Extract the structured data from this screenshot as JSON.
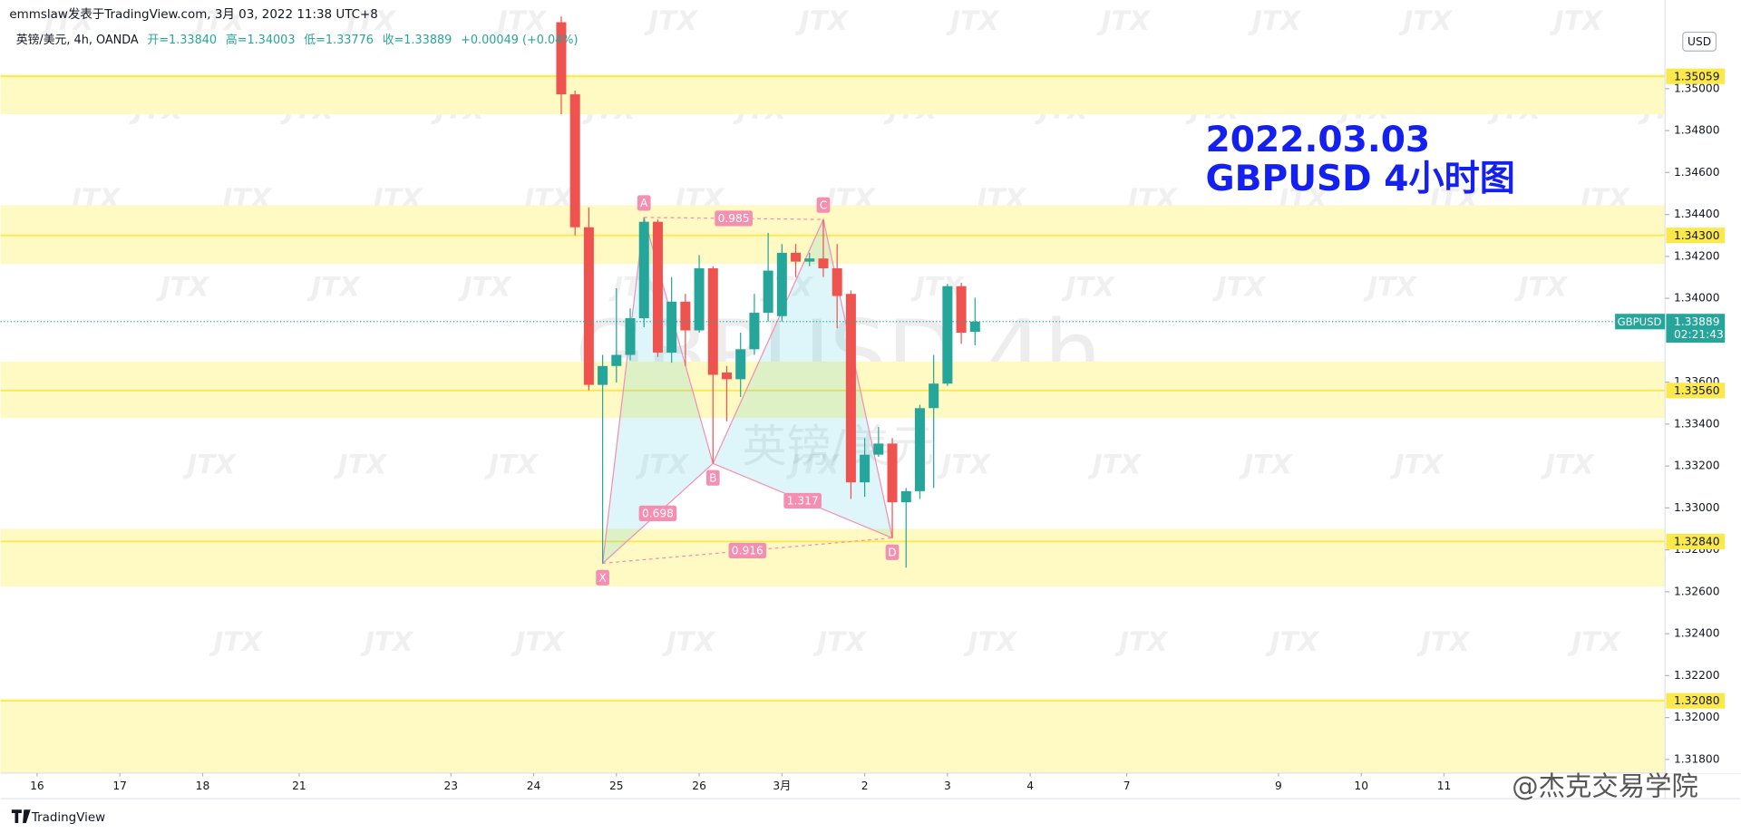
{
  "header": {
    "byline": "emmslaw发表于TradingView.com, 3月 03, 2022 11:38 UTC+8",
    "symbol": "英镑/美元, 4h, OANDA",
    "open": "开=1.33840",
    "high": "高=1.34003",
    "low": "低=1.33776",
    "close": "收=1.33889",
    "change": "+0.00049 (+0.04%)"
  },
  "overlay": {
    "date": "2022.03.03",
    "caption": "GBPUSD 4小时图",
    "watermark": "GBPUSD 4h",
    "watermark_cn": "英镑/美元",
    "tiles": "JTX",
    "credit": "@杰克交易学院",
    "brand": "TradingView"
  },
  "chart_data": {
    "type": "candlestick",
    "currency": "USD",
    "x": [
      38,
      39,
      40,
      41,
      42,
      43,
      44,
      45,
      46,
      47,
      48,
      49,
      50,
      51,
      52,
      53,
      54,
      55,
      56,
      57,
      58,
      59,
      60,
      61,
      62,
      63,
      64,
      65,
      66,
      67,
      68
    ],
    "open": [
      1.35317,
      1.34973,
      1.34339,
      1.33587,
      1.33677,
      1.3373,
      1.33905,
      1.34365,
      1.33741,
      1.33984,
      1.33847,
      1.34143,
      1.33646,
      1.33614,
      1.33757,
      1.33931,
      1.33915,
      1.34217,
      1.34175,
      1.3419,
      1.34143,
      1.34021,
      1.33122,
      1.33254,
      1.33307,
      1.33027,
      1.3308,
      1.33476,
      1.33593,
      1.34058,
      1.3384
    ],
    "high": [
      1.35344,
      1.3499,
      1.34434,
      1.3373,
      1.34048,
      1.33952,
      1.34386,
      1.34376,
      1.34101,
      1.34021,
      1.34206,
      1.34153,
      1.33677,
      1.33836,
      1.34021,
      1.34312,
      1.34259,
      1.34259,
      1.34217,
      1.34376,
      1.34259,
      1.34037,
      1.33333,
      1.33386,
      1.33333,
      1.33095,
      1.33492,
      1.3373,
      1.34069,
      1.34074,
      1.34003
    ],
    "low": [
      1.34878,
      1.343,
      1.33561,
      1.32736,
      1.33598,
      1.33704,
      1.33862,
      1.3372,
      1.33693,
      1.33677,
      1.33836,
      1.33212,
      1.33413,
      1.33529,
      1.3373,
      1.33889,
      1.33889,
      1.34101,
      1.34153,
      1.34101,
      1.33857,
      1.33043,
      1.33053,
      1.33244,
      1.32857,
      1.32715,
      1.33043,
      1.33095,
      1.33582,
      1.33783,
      1.33776
    ],
    "close": [
      1.34973,
      1.34339,
      1.33587,
      1.33677,
      1.3373,
      1.33905,
      1.34365,
      1.33741,
      1.33984,
      1.33847,
      1.34143,
      1.33635,
      1.33614,
      1.33757,
      1.33931,
      1.34132,
      1.34217,
      1.34175,
      1.3419,
      1.34143,
      1.34011,
      1.33122,
      1.33254,
      1.33307,
      1.33027,
      1.3308,
      1.33476,
      1.33593,
      1.34058,
      1.33836,
      1.33889
    ],
    "up_color": "#26a69a",
    "down_color": "#ef5350",
    "xlim": [
      -2.65,
      118.02
    ],
    "xticks": [
      {
        "value": 0,
        "label": "16"
      },
      {
        "value": 6,
        "label": "17"
      },
      {
        "value": 12,
        "label": "18"
      },
      {
        "value": 19,
        "label": "21"
      },
      {
        "value": 30,
        "label": "23"
      },
      {
        "value": 36,
        "label": "24"
      },
      {
        "value": 42,
        "label": "25"
      },
      {
        "value": 48,
        "label": "26"
      },
      {
        "value": 54,
        "label": "3月"
      },
      {
        "value": 60,
        "label": "2"
      },
      {
        "value": 66,
        "label": "3"
      },
      {
        "value": 72,
        "label": "4"
      },
      {
        "value": 79,
        "label": "7"
      },
      {
        "value": 90,
        "label": "9"
      },
      {
        "value": 96,
        "label": "10"
      },
      {
        "value": 102,
        "label": "11"
      }
    ],
    "ylim": [
      1.31735,
      1.35423
    ],
    "yticks": [
      {
        "value": 1.318,
        "label": "1.31800"
      },
      {
        "value": 1.32,
        "label": "1.32000"
      },
      {
        "value": 1.322,
        "label": "1.32200"
      },
      {
        "value": 1.324,
        "label": "1.32400"
      },
      {
        "value": 1.326,
        "label": "1.32600"
      },
      {
        "value": 1.328,
        "label": "1.32800"
      },
      {
        "value": 1.33,
        "label": "1.33000"
      },
      {
        "value": 1.332,
        "label": "1.33200"
      },
      {
        "value": 1.334,
        "label": "1.33400"
      },
      {
        "value": 1.336,
        "label": "1.33600"
      },
      {
        "value": 1.34,
        "label": "1.34000"
      },
      {
        "value": 1.342,
        "label": "1.34200"
      },
      {
        "value": 1.344,
        "label": "1.34400"
      },
      {
        "value": 1.346,
        "label": "1.34600"
      },
      {
        "value": 1.348,
        "label": "1.34800"
      },
      {
        "value": 1.35,
        "label": "1.35000"
      }
    ],
    "grid": false,
    "zones": [
      {
        "level": {
          "value": 1.35059,
          "label": "1.35059"
        },
        "top": 1.35069,
        "bottom": 1.34878
      },
      {
        "level": {
          "value": 1.343,
          "label": "1.34300"
        },
        "top": 1.34444,
        "bottom": 1.34164
      },
      {
        "level": {
          "value": 1.3356,
          "label": "1.33560"
        },
        "top": 1.33698,
        "bottom": 1.33429
      },
      {
        "level": {
          "value": 1.3284,
          "label": "1.32840"
        },
        "top": 1.329,
        "bottom": 1.32625
      },
      {
        "level": {
          "value": 1.3208,
          "label": "1.32080"
        },
        "top": 1.3209,
        "bottom": 1.31735
      }
    ],
    "zone_color": "#fff9c4",
    "zone_line": "#fbe84a",
    "current_price": 1.33889,
    "symbol_tag": "GBPUSD",
    "countdown": "02:21:43",
    "pattern": {
      "points": [
        {
          "label": "X",
          "x": 41,
          "price": 1.32736
        },
        {
          "label": "A",
          "x": 44,
          "price": 1.34386
        },
        {
          "label": "B",
          "x": 49,
          "price": 1.33212
        },
        {
          "label": "C",
          "x": 57,
          "price": 1.34376
        },
        {
          "label": "D",
          "x": 62,
          "price": 1.32857
        }
      ],
      "ratios": [
        0.698,
        0.985,
        1.317,
        0.916
      ],
      "color": "#f48fb1"
    }
  }
}
